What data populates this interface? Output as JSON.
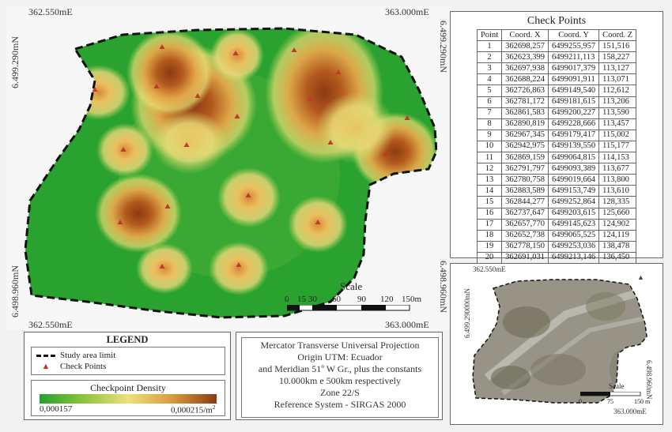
{
  "map": {
    "coords": {
      "top_left": "362.550mE",
      "top_right": "363.000mE",
      "bottom_left": "362.550mE",
      "bottom_right": "363.000mE",
      "left_top": "6.499.290mN",
      "left_bottom": "6.498.960mN",
      "right_top": "6.499.290mN",
      "right_bottom": "6.498.960mN"
    },
    "scale": {
      "title": "Scale",
      "ticks": [
        "0",
        "15",
        "30",
        "60",
        "90",
        "120",
        "150m"
      ]
    },
    "colors": {
      "low": "#26a12e",
      "mid": "#f2d36b",
      "high": "#8b3a12",
      "marker": "#c0392b"
    }
  },
  "check_points": {
    "title": "Check Points",
    "headers": [
      "Point",
      "Coord. X",
      "Coord. Y",
      "Coord. Z"
    ],
    "rows": [
      [
        "1",
        "362698,257",
        "6499255,957",
        "151,516"
      ],
      [
        "2",
        "362623,399",
        "6499211,113",
        "158,227"
      ],
      [
        "3",
        "362697,938",
        "6499017,379",
        "113,127"
      ],
      [
        "4",
        "362688,224",
        "6499091,911",
        "113,071"
      ],
      [
        "5",
        "362726,863",
        "6499149,540",
        "112,612"
      ],
      [
        "6",
        "362781,172",
        "6499181,615",
        "113,206"
      ],
      [
        "7",
        "362861,583",
        "6499200,227",
        "113,590"
      ],
      [
        "8",
        "362890,819",
        "6499228,666",
        "113,457"
      ],
      [
        "9",
        "362967,345",
        "6499179,417",
        "115,002"
      ],
      [
        "10",
        "362942,975",
        "6499139,550",
        "115,177"
      ],
      [
        "11",
        "362869,159",
        "6499064,815",
        "114,153"
      ],
      [
        "12",
        "362791,797",
        "6499093,389",
        "113,677"
      ],
      [
        "13",
        "362780,758",
        "6499019,664",
        "113,800"
      ],
      [
        "14",
        "362883,589",
        "6499153,749",
        "113,610"
      ],
      [
        "15",
        "362844,277",
        "6499252,864",
        "128,335"
      ],
      [
        "16",
        "362737,647",
        "6499203,615",
        "125,660"
      ],
      [
        "17",
        "362657,770",
        "6499145,623",
        "124,902"
      ],
      [
        "18",
        "362652,738",
        "6499065,525",
        "124,119"
      ],
      [
        "19",
        "362778,150",
        "6499253,036",
        "138,478"
      ],
      [
        "20",
        "362691,031",
        "6499213,146",
        "136,450"
      ]
    ]
  },
  "inset": {
    "coord_top": "362.550mE",
    "coord_bottom": "363.000mE",
    "coord_left": "6.499.290000mN",
    "coord_right": "6.498.960mN",
    "scale_title": "Scale",
    "scale_ticks": [
      "0",
      "75",
      "150 m"
    ]
  },
  "legend": {
    "title": "LEGEND",
    "items": [
      "Study area limit",
      "Check Points"
    ],
    "density_title": "Checkpoint Density",
    "density_min": "0,000157",
    "density_max": "0,000215/m",
    "density_sup": "2"
  },
  "projection": {
    "lines": [
      "Mercator Transverse Universal Projection",
      "Origin UTM: Ecuador",
      "and Meridian 51º W Gr., plus the constants",
      "10.000km e 500km respectively",
      "Zone 22/S",
      "Reference System - SIRGAS 2000"
    ]
  }
}
